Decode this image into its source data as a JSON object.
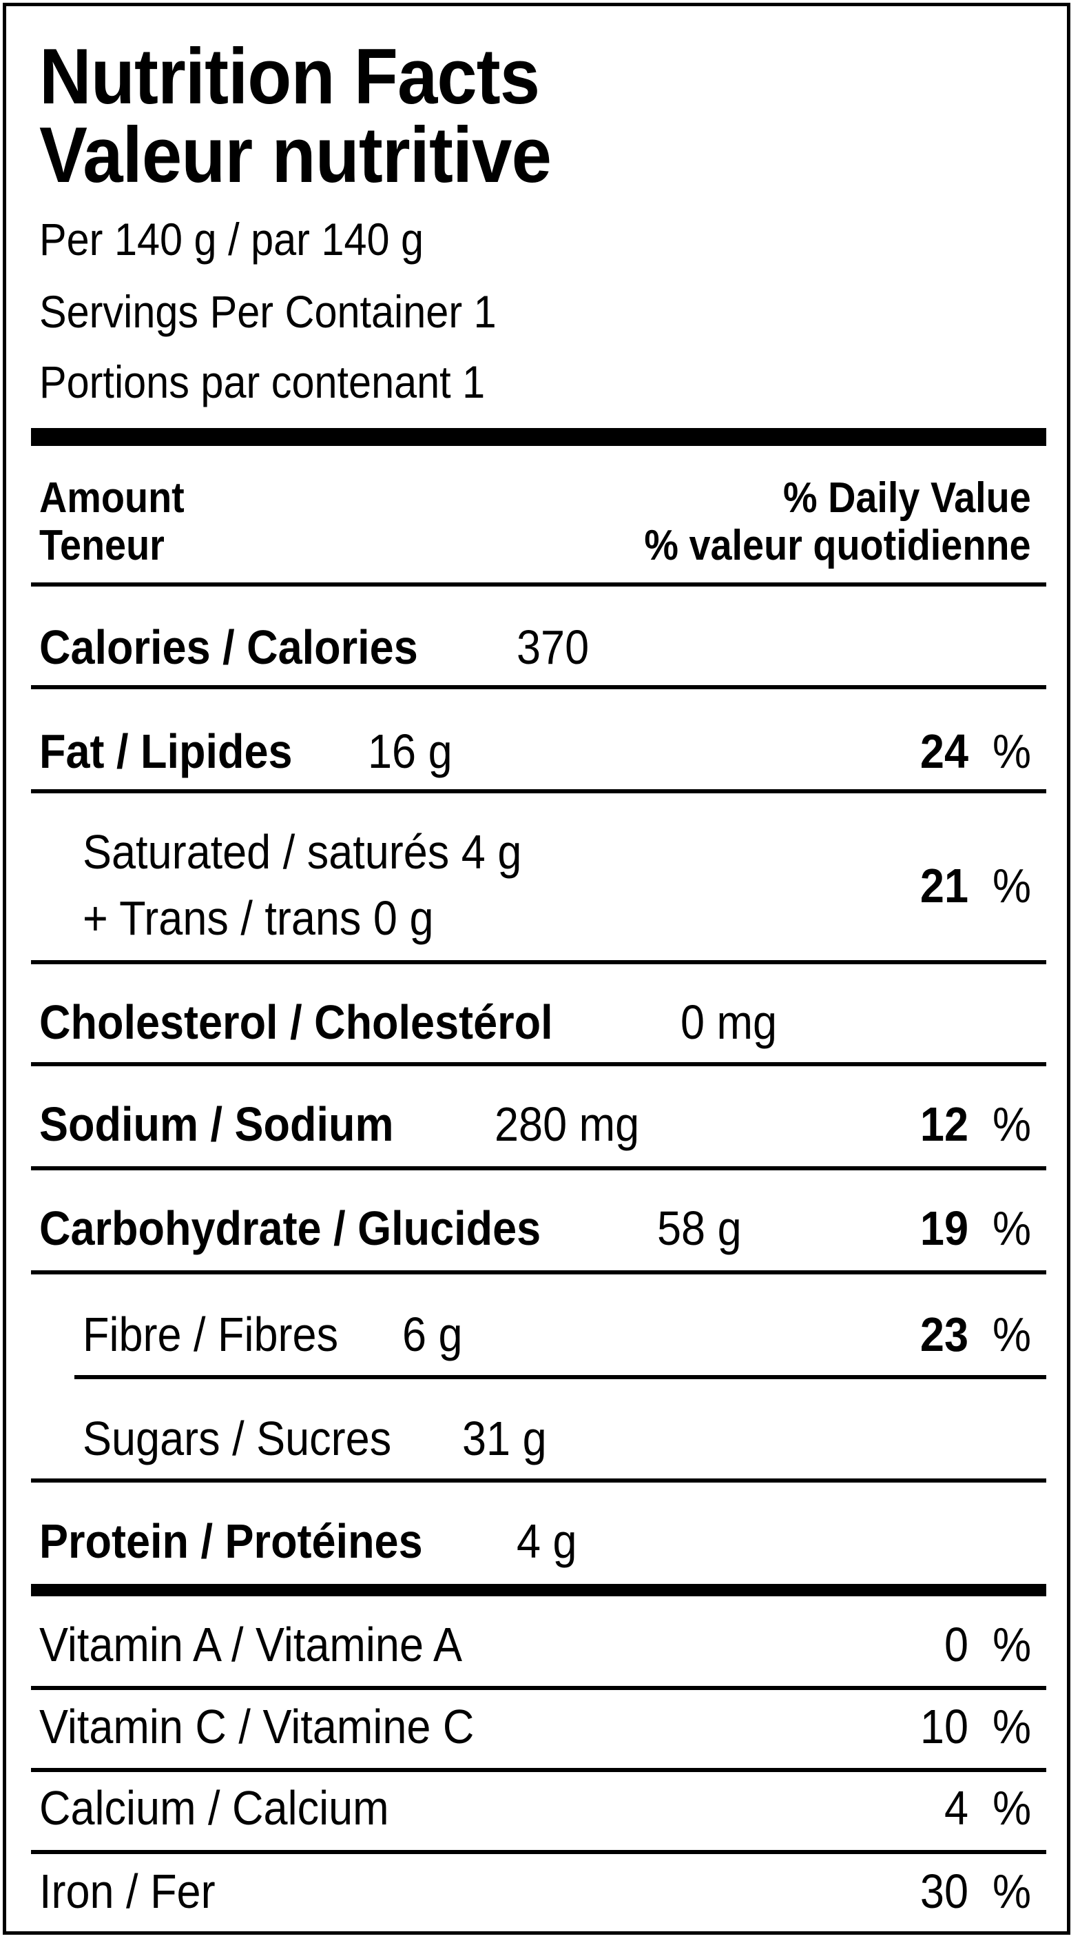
{
  "title_en": "Nutrition Facts",
  "title_fr": "Valeur nutritive",
  "serving_size": "Per 140  g / par 140  g",
  "servings_en": "Servings Per Container 1",
  "servings_fr": "Portions par contenant 1",
  "header": {
    "amount_en": "Amount",
    "amount_fr": "Teneur",
    "dv_en": "% Daily Value",
    "dv_fr": "% valeur quotidienne"
  },
  "calories": {
    "label": "Calories / Calories",
    "value": "370"
  },
  "fat": {
    "label": "Fat / Lipides",
    "amount": "16 g",
    "dv": "24",
    "unit": "%"
  },
  "saturated": {
    "label1": "Saturated / saturés 4 g",
    "label2": "+ Trans / trans 0 g",
    "dv": "21",
    "unit": "%"
  },
  "cholesterol": {
    "label": "Cholesterol / Cholestérol",
    "amount": "0 mg"
  },
  "sodium": {
    "label": "Sodium / Sodium",
    "amount": "280 mg",
    "dv": "12",
    "unit": "%"
  },
  "carbohydrate": {
    "label": "Carbohydrate / Glucides",
    "amount": "58 g",
    "dv": "19",
    "unit": "%"
  },
  "fibre": {
    "label": "Fibre / Fibres",
    "amount": "6 g",
    "dv": "23",
    "unit": "%"
  },
  "sugars": {
    "label": "Sugars / Sucres",
    "amount": "31 g"
  },
  "protein": {
    "label": "Protein / Protéines",
    "amount": "4 g"
  },
  "vitamins": [
    {
      "label": "Vitamin A / Vitamine A",
      "dv": "0",
      "unit": "%"
    },
    {
      "label": "Vitamin C / Vitamine C",
      "dv": "10",
      "unit": "%"
    },
    {
      "label": "Calcium / Calcium",
      "dv": "4",
      "unit": "%"
    },
    {
      "label": "Iron / Fer",
      "dv": "30",
      "unit": "%"
    }
  ]
}
